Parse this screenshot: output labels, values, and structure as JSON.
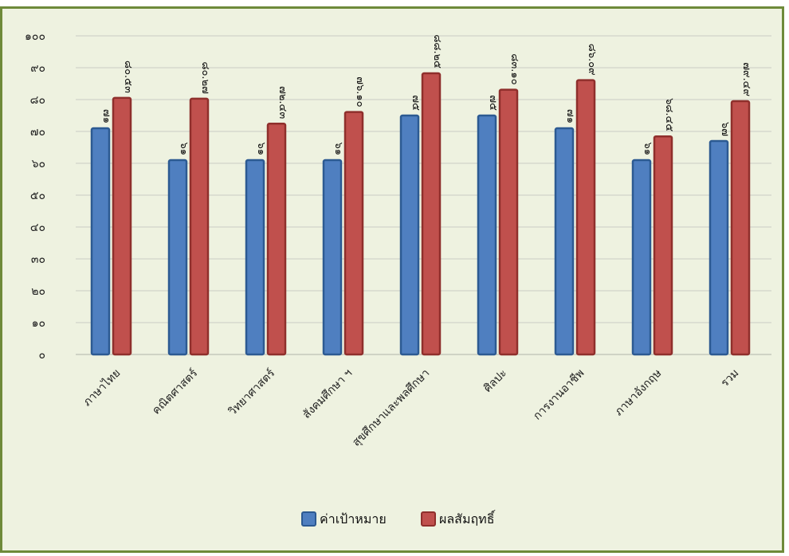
{
  "chart_data": {
    "type": "bar",
    "categories": [
      "ภาษาไทย",
      "คณิตศาสตร์",
      "วิทยาศาสตร์",
      "สังคมศึกษา ฯ",
      "สุขศึกษาและพลศึกษา",
      "ศิลปะ",
      "การงานอาชีพ",
      "ภาษาอังกฤษ",
      "รวม"
    ],
    "series": [
      {
        "name": "ค่าเป้าหมาย",
        "color": "#4f7fc0",
        "values": [
          71,
          61,
          61,
          61,
          75,
          75,
          71,
          61,
          67
        ],
        "labels": [
          "๗๑",
          "๖๑",
          "๖๑",
          "๖๑",
          "๗๕",
          "๗๕",
          "๗๑",
          "๖๑",
          "๖๗"
        ]
      },
      {
        "name": "ผลสัมฤทธิ์",
        "color": "#c0504d",
        "values": [
          80.53,
          80.27,
          72.43,
          76.1,
          88.25,
          83.1,
          86.09,
          68.45,
          79.49
        ],
        "labels": [
          "๘๐.๕๓",
          "๘๐.๒๗",
          "๗๒.๔๓",
          "๗๖.๑๐",
          "๘๘.๒๕",
          "๘๓.๑๐",
          "๘๖.๐๙",
          "๖๘.๔๕",
          "๗๙.๔๙"
        ]
      }
    ],
    "ylim": [
      0,
      100
    ],
    "yticks": [
      0,
      10,
      20,
      30,
      40,
      50,
      60,
      70,
      80,
      90,
      100
    ],
    "ytick_labels": [
      "๐",
      "๑๐",
      "๒๐",
      "๓๐",
      "๔๐",
      "๕๐",
      "๖๐",
      "๗๐",
      "๘๐",
      "๙๐",
      "๑๐๐"
    ],
    "grid": true,
    "legend": "bottom-center",
    "title": "",
    "xlabel": "",
    "ylabel": ""
  }
}
